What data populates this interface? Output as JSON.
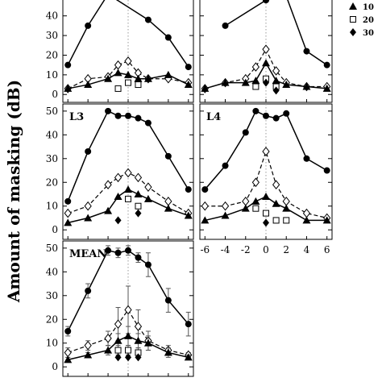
{
  "figure": {
    "ylabel": "Amount of masking (dB)",
    "legend": {
      "placement": "top-right",
      "entries": [
        {
          "symbol": "filled-triangle",
          "label": "10"
        },
        {
          "symbol": "open-square",
          "label": "20"
        },
        {
          "symbol": "filled-diamond",
          "label": "30"
        }
      ]
    },
    "x_ticks": [
      "-6",
      "-4",
      "-2",
      "0",
      "2",
      "4",
      "6"
    ],
    "y_ticks": [
      "0",
      "10",
      "20",
      "30",
      "40",
      "50"
    ]
  },
  "chart_data": [
    {
      "type": "line",
      "panel": "",
      "x_ticks_shown": false,
      "xlim": [
        -6.5,
        6.5
      ],
      "ylim": [
        -4,
        53
      ],
      "series": [
        {
          "style": "filled-circle-solid",
          "x": [
            -6,
            -4,
            -2,
            2,
            4,
            6
          ],
          "y": [
            15,
            35,
            51,
            38,
            29,
            14
          ]
        },
        {
          "style": "open-diamond-dashed",
          "x": [
            -6,
            -4,
            -2,
            -1,
            0,
            1,
            2,
            4,
            6
          ],
          "y": [
            3,
            8,
            9,
            15,
            17,
            11,
            8,
            8,
            6
          ]
        },
        {
          "style": "filled-triangle-solid",
          "x": [
            -6,
            -4,
            -2,
            -1,
            0,
            1,
            2,
            4,
            6
          ],
          "y": [
            3,
            5,
            8,
            11,
            10,
            8,
            8,
            10,
            5
          ]
        },
        {
          "style": "open-square",
          "x": [
            -1,
            0,
            1
          ],
          "y": [
            3,
            6,
            5
          ]
        }
      ]
    },
    {
      "type": "line",
      "panel": "",
      "x_ticks_shown": false,
      "xlim": [
        -6.5,
        6.5
      ],
      "ylim": [
        -4,
        53
      ],
      "series": [
        {
          "style": "filled-circle-solid",
          "x": [
            -4,
            0,
            2,
            4,
            6
          ],
          "y": [
            35,
            48,
            50,
            22,
            15
          ]
        },
        {
          "style": "open-diamond-dashed",
          "x": [
            -6,
            -4,
            -2,
            -1,
            0,
            1,
            2,
            4,
            6
          ],
          "y": [
            3,
            6,
            8,
            14,
            23,
            12,
            6,
            4,
            4
          ]
        },
        {
          "style": "filled-triangle-solid",
          "x": [
            -6,
            -4,
            -2,
            -1,
            0,
            1,
            2,
            4,
            6
          ],
          "y": [
            3,
            6,
            6,
            7,
            16,
            7,
            5,
            4,
            3
          ]
        },
        {
          "style": "open-square",
          "x": [
            -1,
            0,
            1
          ],
          "y": [
            4,
            8,
            4
          ]
        },
        {
          "style": "filled-diamond",
          "x": [
            0,
            1
          ],
          "y": [
            6,
            2
          ]
        }
      ]
    },
    {
      "type": "line",
      "panel": "L3",
      "x_ticks_shown": false,
      "xlim": [
        -6.5,
        6.5
      ],
      "ylim": [
        -4,
        53
      ],
      "series": [
        {
          "style": "filled-circle-solid",
          "x": [
            -6,
            -4,
            -2,
            -1,
            0,
            1,
            2,
            4,
            6
          ],
          "y": [
            12,
            33,
            50,
            48,
            48,
            47,
            45,
            31,
            17
          ]
        },
        {
          "style": "open-diamond-dashed",
          "x": [
            -6,
            -4,
            -2,
            -1,
            0,
            1,
            2,
            4,
            6
          ],
          "y": [
            7,
            10,
            19,
            22,
            24,
            22,
            18,
            12,
            7
          ]
        },
        {
          "style": "filled-triangle-solid",
          "x": [
            -6,
            -4,
            -2,
            -1,
            0,
            1,
            2,
            4,
            6
          ],
          "y": [
            3,
            5,
            8,
            14,
            17,
            15,
            13,
            9,
            6
          ]
        },
        {
          "style": "open-square",
          "x": [
            0,
            1
          ],
          "y": [
            13,
            10
          ]
        },
        {
          "style": "filled-diamond",
          "x": [
            -1,
            1
          ],
          "y": [
            4,
            7
          ]
        }
      ]
    },
    {
      "type": "line",
      "panel": "L4",
      "x_ticks_shown": true,
      "xlim": [
        -6.5,
        6.5
      ],
      "ylim": [
        -4,
        53
      ],
      "series": [
        {
          "style": "filled-circle-solid",
          "x": [
            -6,
            -4,
            -2,
            -1,
            0,
            1,
            2,
            4,
            6
          ],
          "y": [
            17,
            27,
            41,
            50,
            48,
            47,
            49,
            30,
            25
          ]
        },
        {
          "style": "open-diamond-dashed",
          "x": [
            -6,
            -4,
            -2,
            -1,
            0,
            1,
            2,
            4,
            6
          ],
          "y": [
            10,
            10,
            12,
            20,
            33,
            19,
            12,
            7,
            5
          ]
        },
        {
          "style": "filled-triangle-solid",
          "x": [
            -6,
            -4,
            -2,
            -1,
            0,
            1,
            2,
            4,
            6
          ],
          "y": [
            4,
            6,
            9,
            12,
            14,
            11,
            9,
            4,
            4
          ]
        },
        {
          "style": "open-square",
          "x": [
            -1,
            0,
            1,
            2
          ],
          "y": [
            9,
            7,
            4,
            4
          ]
        },
        {
          "style": "filled-diamond",
          "x": [
            0
          ],
          "y": [
            3
          ]
        }
      ]
    },
    {
      "type": "line",
      "panel": "MEAN",
      "x_ticks_shown": false,
      "xlim": [
        -6.5,
        6.5
      ],
      "ylim": [
        -4,
        53
      ],
      "series": [
        {
          "style": "filled-circle-solid",
          "x": [
            -6,
            -4,
            -2,
            -1,
            0,
            1,
            2,
            4,
            6
          ],
          "y": [
            15,
            32,
            49,
            48,
            49,
            46,
            43,
            28,
            18
          ],
          "err": [
            2,
            3,
            2,
            2,
            2,
            2,
            5,
            5,
            5
          ]
        },
        {
          "style": "open-diamond-dashed",
          "x": [
            -6,
            -4,
            -2,
            -1,
            0,
            1,
            2,
            4,
            6
          ],
          "y": [
            6,
            9,
            12,
            18,
            24,
            17,
            11,
            7,
            5
          ],
          "err": [
            2,
            2,
            3,
            7,
            10,
            7,
            4,
            2,
            1
          ]
        },
        {
          "style": "filled-triangle-solid",
          "x": [
            -6,
            -4,
            -2,
            -1,
            0,
            1,
            2,
            4,
            6
          ],
          "y": [
            3,
            5,
            7,
            11,
            13,
            11,
            10,
            6,
            4
          ],
          "err": [
            1,
            1,
            2,
            3,
            4,
            3,
            3,
            2,
            1
          ]
        },
        {
          "style": "open-square",
          "x": [
            -1,
            0,
            1
          ],
          "y": [
            7,
            7,
            6
          ],
          "err": [
            2,
            2,
            2
          ]
        },
        {
          "style": "filled-diamond",
          "x": [
            -1,
            0,
            1
          ],
          "y": [
            4,
            4,
            4
          ]
        }
      ]
    }
  ]
}
